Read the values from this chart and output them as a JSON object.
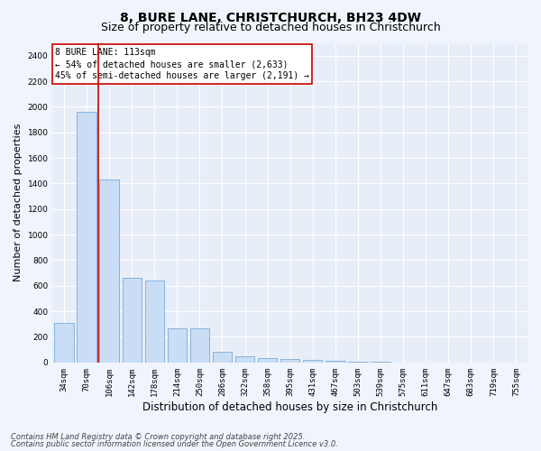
{
  "title_line1": "8, BURE LANE, CHRISTCHURCH, BH23 4DW",
  "title_line2": "Size of property relative to detached houses in Christchurch",
  "xlabel": "Distribution of detached houses by size in Christchurch",
  "ylabel": "Number of detached properties",
  "bar_color": "#c9ddf5",
  "bar_edge_color": "#7aabdb",
  "categories": [
    "34sqm",
    "70sqm",
    "106sqm",
    "142sqm",
    "178sqm",
    "214sqm",
    "250sqm",
    "286sqm",
    "322sqm",
    "358sqm",
    "395sqm",
    "431sqm",
    "467sqm",
    "503sqm",
    "539sqm",
    "575sqm",
    "611sqm",
    "647sqm",
    "683sqm",
    "719sqm",
    "755sqm"
  ],
  "values": [
    310,
    1960,
    1430,
    660,
    640,
    265,
    265,
    85,
    50,
    35,
    25,
    20,
    15,
    8,
    3,
    2,
    1,
    1,
    0,
    0,
    0
  ],
  "ylim": [
    0,
    2500
  ],
  "yticks": [
    0,
    200,
    400,
    600,
    800,
    1000,
    1200,
    1400,
    1600,
    1800,
    2000,
    2200,
    2400
  ],
  "vline_x": 1.5,
  "vline_color": "#cc0000",
  "annotation_title": "8 BURE LANE: 113sqm",
  "annotation_line1": "← 54% of detached houses are smaller (2,633)",
  "annotation_line2": "45% of semi-detached houses are larger (2,191) →",
  "annotation_box_facecolor": "#ffffff",
  "annotation_box_edgecolor": "#cc0000",
  "plot_bg_color": "#e8eef8",
  "fig_bg_color": "#f0f4fc",
  "footer_line1": "Contains HM Land Registry data © Crown copyright and database right 2025.",
  "footer_line2": "Contains public sector information licensed under the Open Government Licence v3.0.",
  "title_fontsize": 10,
  "subtitle_fontsize": 9,
  "tick_fontsize": 6.5,
  "ylabel_fontsize": 8,
  "xlabel_fontsize": 8.5,
  "annot_fontsize": 7,
  "footer_fontsize": 6
}
